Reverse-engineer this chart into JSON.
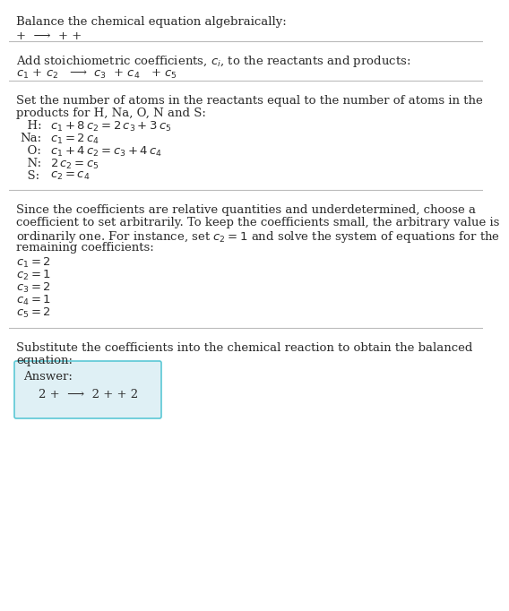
{
  "title": "Balance the chemical equation algebraically:",
  "line1": "+  ⟶  + +",
  "section2_title": "Add stoichiometric coefficients, $c_i$, to the reactants and products:",
  "line2": "$c_1$ + $c_2$   ⟶  $c_3$  + $c_4$   + $c_5$",
  "section3_title_l1": "Set the number of atoms in the reactants equal to the number of atoms in the",
  "section3_title_l2": "products for H, Na, O, N and S:",
  "equations": [
    [
      "  H:",
      "$c_1 + 8\\,c_2 = 2\\,c_3 + 3\\,c_5$"
    ],
    [
      "Na:",
      "$c_1 = 2\\,c_4$"
    ],
    [
      "  O:",
      "$c_1 + 4\\,c_2 = c_3 + 4\\,c_4$"
    ],
    [
      "  N:",
      "$2\\,c_2 = c_5$"
    ],
    [
      "  S:",
      "$c_2 = c_4$"
    ]
  ],
  "section4_lines": [
    "Since the coefficients are relative quantities and underdetermined, choose a",
    "coefficient to set arbitrarily. To keep the coefficients small, the arbitrary value is",
    "ordinarily one. For instance, set $c_2 = 1$ and solve the system of equations for the",
    "remaining coefficients:"
  ],
  "solutions": [
    "$c_1 = 2$",
    "$c_2 = 1$",
    "$c_3 = 2$",
    "$c_4 = 1$",
    "$c_5 = 2$"
  ],
  "section5_l1": "Substitute the coefficients into the chemical reaction to obtain the balanced",
  "section5_l2": "equation:",
  "answer_label": "Answer:",
  "answer_eq": "    2 +  ⟶  2 + + 2",
  "bg_color": "#ffffff",
  "text_color": "#2b2b2b",
  "box_bg": "#dff0f5",
  "box_border": "#5bc8d5",
  "sep_color": "#bbbbbb",
  "fs": 9.5
}
